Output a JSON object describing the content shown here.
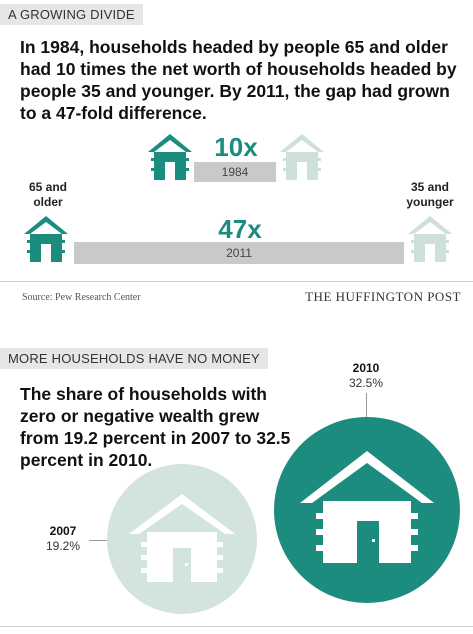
{
  "section1": {
    "tag": "A GROWING DIVIDE",
    "headline": "In 1984, households headed by people 65 and older had 10 times the net worth of households headed by people 35 and younger. By 2011, the gap had grown to a 47-fold difference.",
    "comparison_1984": {
      "multiplier": "10x",
      "year": "1984"
    },
    "comparison_2011": {
      "multiplier": "47x",
      "year": "2011"
    },
    "left_label": "65 and older",
    "right_label": "35 and younger",
    "source": "Source: Pew Research Center",
    "brand": "THE HUFFINGTON POST"
  },
  "section2": {
    "tag": "MORE HOUSEHOLDS HAVE NO MONEY",
    "headline": "The share of households with zero or negative wealth grew from 19.2 percent in 2007 to 32.5 percent in 2010.",
    "year_2007": {
      "year": "2007",
      "value": "19.2%"
    },
    "year_2010": {
      "year": "2010",
      "value": "32.5%"
    }
  },
  "colors": {
    "teal": "#1b8c7e",
    "teal_dark": "#17776b",
    "pale": "#cfe0dc",
    "pale_circle": "#d3e3de",
    "bar_gray": "#c9c9c9"
  }
}
